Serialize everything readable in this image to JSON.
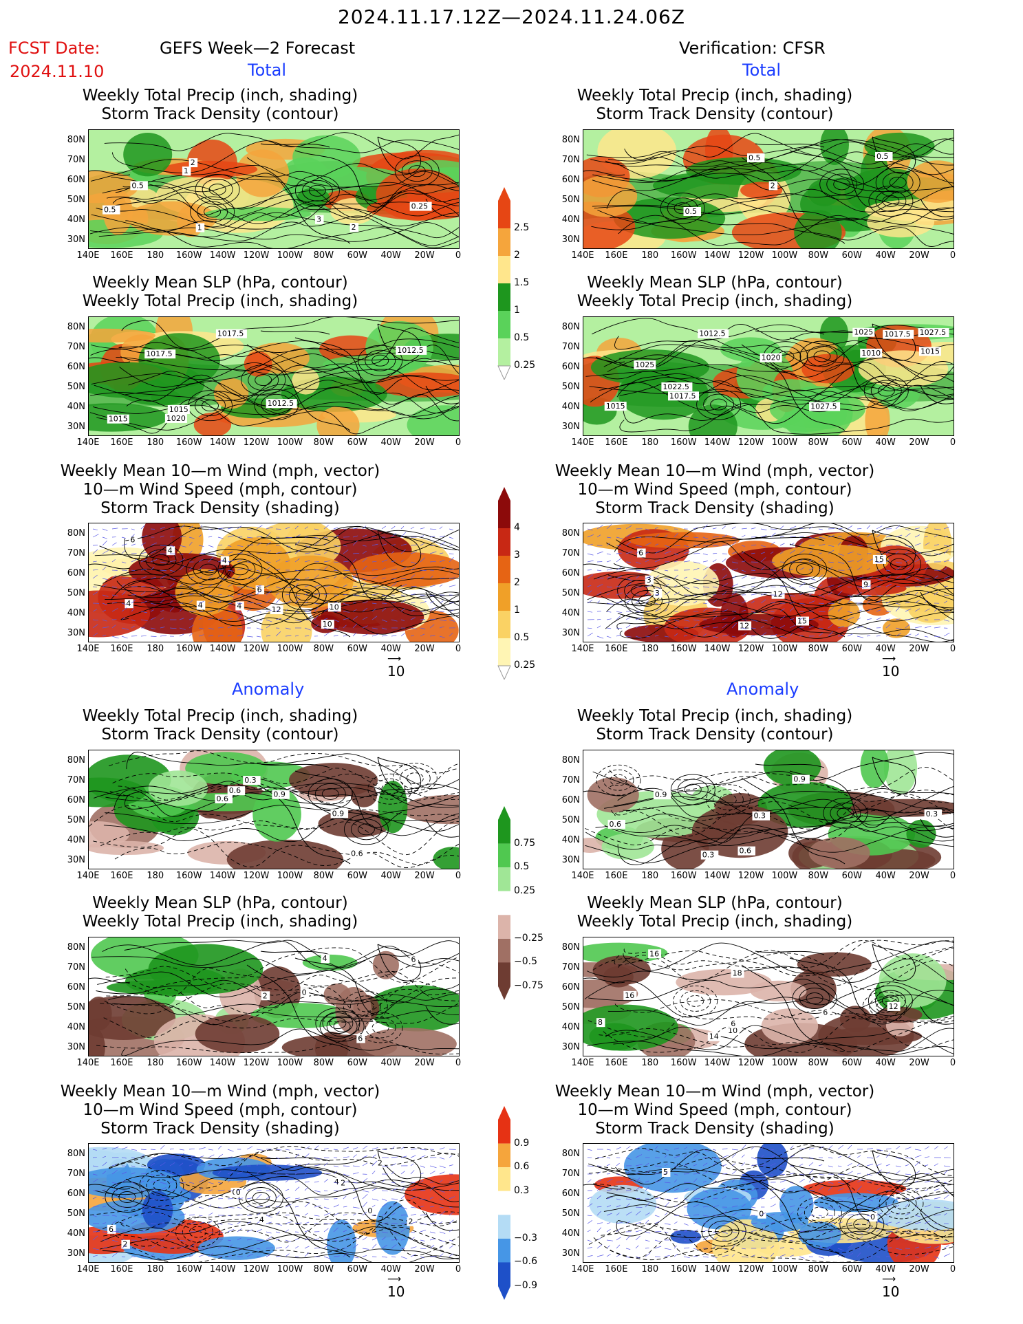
{
  "header": {
    "main_title": "2024.11.17.12Z—2024.11.24.06Z",
    "fcst_label": "FCST Date:",
    "fcst_date": "2024.11.10",
    "left_heading": "GEFS Week—2 Forecast",
    "right_heading": "Verification: CFSR"
  },
  "sections": {
    "total": "Total",
    "anomaly": "Anomaly"
  },
  "panel_titles": {
    "precip_storm": [
      "Weekly Total Precip (inch, shading)",
      "Storm Track Density (contour)"
    ],
    "slp_precip": [
      "Weekly Mean SLP (hPa, contour)",
      "Weekly Total Precip (inch, shading)"
    ],
    "wind_storm": [
      "Weekly Mean 10—m Wind (mph, vector)",
      "10—m Wind Speed (mph, contour)",
      "Storm Track Density (shading)"
    ]
  },
  "axes": {
    "lat_ticks": [
      "80N",
      "70N",
      "60N",
      "50N",
      "40N",
      "30N"
    ],
    "lon_ticks": [
      "140E",
      "160E",
      "180",
      "160W",
      "140W",
      "120W",
      "100W",
      "80W",
      "60W",
      "40W",
      "20W",
      "0"
    ]
  },
  "vector_ref": "10",
  "colorbars": {
    "total_precip": [
      "2.5",
      "2",
      "1.5",
      "1",
      "0.5",
      "0.25"
    ],
    "total_storm": [
      "4",
      "3",
      "2",
      "1",
      "0.5",
      "0.25"
    ],
    "anom_precip": [
      "0.75",
      "0.5",
      "0.25",
      "−0.25",
      "−0.5",
      "−0.75"
    ],
    "anom_storm": [
      "0.9",
      "0.6",
      "0.3",
      "−0.3",
      "−0.6",
      "−0.9"
    ]
  },
  "colors": {
    "precip_scale": [
      "#b4f0a0",
      "#5ad25a",
      "#1e961e",
      "#ffe68c",
      "#f5a53c",
      "#e64614"
    ],
    "storm_scale": [
      "#fff5b4",
      "#fad264",
      "#f0a028",
      "#e66414",
      "#c82814",
      "#8c0a0a"
    ],
    "anom_precip_scale": [
      "#6e3c32",
      "#a07064",
      "#dcb4aa",
      "#ffffff",
      "#a0e696",
      "#50c850",
      "#1e961e"
    ],
    "anom_storm_scale": [
      "#1e50c8",
      "#4696e6",
      "#b4dcf5",
      "#ffffff",
      "#ffe68c",
      "#f5a53c",
      "#e63214"
    ],
    "title_red": "#e01010",
    "title_blue": "#1a3cff"
  },
  "map_labels": {
    "l1": [
      "3",
      "1",
      "2",
      "0.5",
      "0.25",
      "2",
      "0.5",
      "1"
    ],
    "r1": [
      "0.5",
      "2",
      "0.5",
      "0.5"
    ],
    "l2": [
      "1020",
      "1017.5",
      "1015",
      "1012.5",
      "1017.5",
      "1012.5",
      "1015"
    ],
    "r2": [
      "1015",
      "1020",
      "1017.5",
      "1027.5",
      "1025",
      "1022.5",
      "1017.5",
      "1015",
      "1012.5",
      "1025",
      "1027.5",
      "1010"
    ],
    "l3": [
      "4",
      "4",
      "6",
      "4",
      "12",
      "10",
      "4",
      "10",
      "6",
      "4"
    ],
    "r3": [
      "6",
      "9",
      "3",
      "3",
      "15",
      "12",
      "12",
      "15"
    ],
    "l4": [
      "0.9",
      "0.6",
      "0.9",
      "0.6",
      "0.3",
      "0.6"
    ],
    "r4": [
      "0.3",
      "0.9",
      "0.6",
      "0.3",
      "0.9",
      "0.6",
      "0.3"
    ],
    "l5": [
      "2",
      "0",
      "6",
      "6",
      "4"
    ],
    "r5": [
      "10",
      "6",
      "8",
      "14",
      "12",
      "18",
      "16",
      "16",
      "6"
    ],
    "l6": [
      "0",
      "2",
      "2",
      "6",
      "4",
      "2",
      "0",
      "0",
      "4",
      "2"
    ],
    "r6": [
      "0",
      "0",
      "5"
    ]
  }
}
